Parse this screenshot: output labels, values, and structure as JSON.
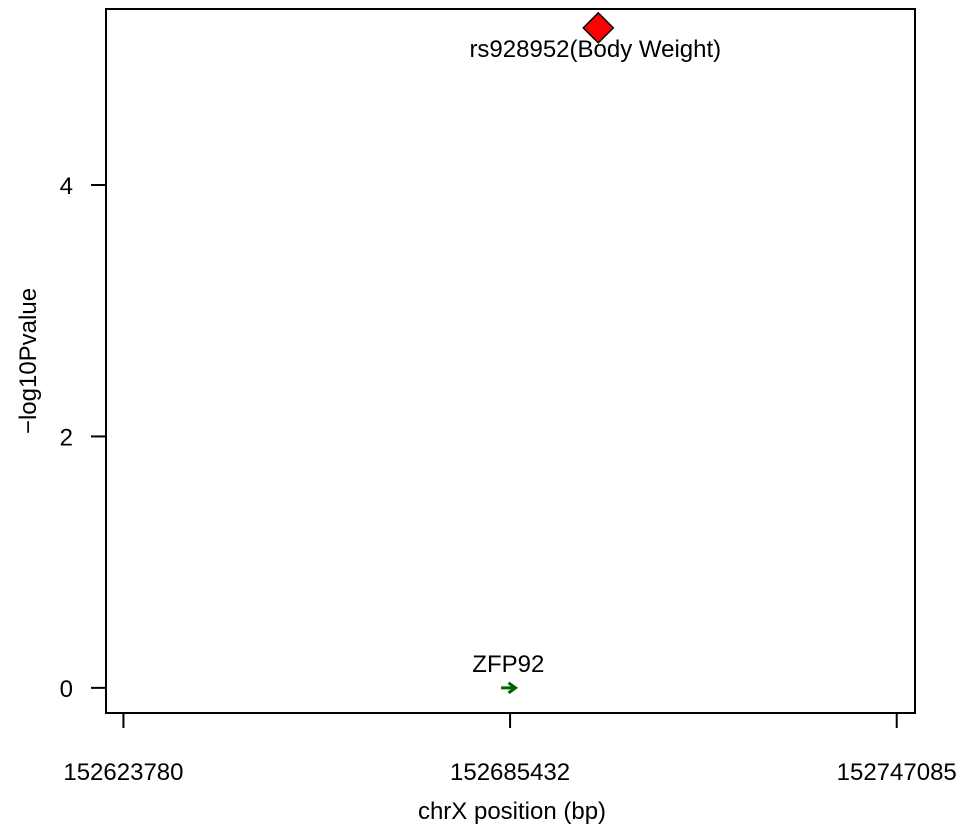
{
  "chart_data": {
    "type": "scatter",
    "xlabel": "chrX position (bp)",
    "ylabel": "−log10Pvalue",
    "xlim": [
      152621000,
      152750000
    ],
    "ylim": [
      -0.2,
      5.4
    ],
    "x_ticks": [
      152623780,
      152685432,
      152747085
    ],
    "x_tick_labels": [
      "152623780",
      "152685432",
      "152747085"
    ],
    "y_ticks": [
      0,
      2,
      4
    ],
    "y_tick_labels": [
      "0",
      "2",
      "4"
    ],
    "grid": false,
    "points": [
      {
        "x": 152699500,
        "y": 5.25,
        "label": "rs928952(Body Weight)",
        "shape": "diamond",
        "color": "#ff0000"
      }
    ],
    "genes": [
      {
        "name": "ZFP92",
        "start": 152684000,
        "end": 152686300,
        "y": 0,
        "strand": "+",
        "color": "#006400"
      }
    ]
  }
}
